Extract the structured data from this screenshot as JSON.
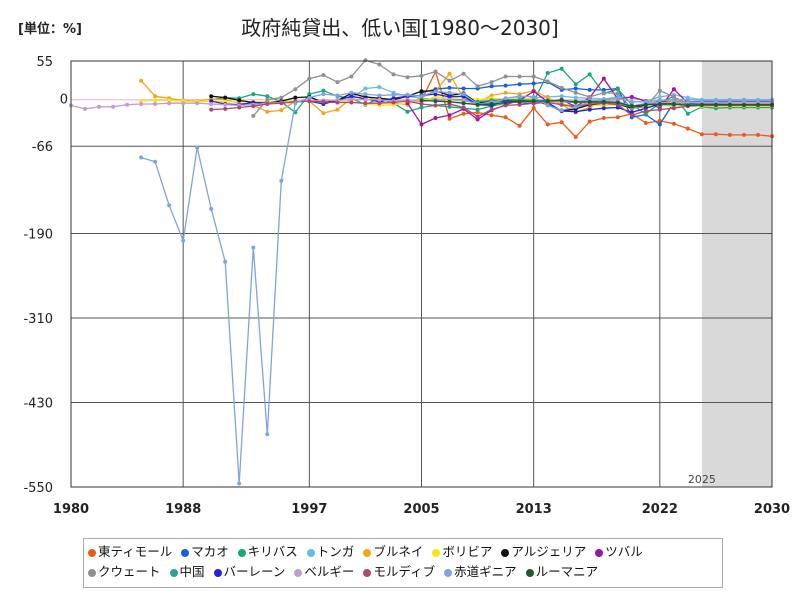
{
  "chart_data": {
    "type": "line",
    "title": "政府純貸出、低い国[1980～2030]",
    "unit_label": "[単位：%]",
    "xlim": [
      1980,
      2030
    ],
    "ylim": [
      -550,
      55
    ],
    "x_ticks": [
      "1980",
      "1988",
      "1997",
      "2005",
      "2013",
      "2022",
      "2030"
    ],
    "y_ticks": [
      "55",
      "0",
      "-66",
      "-190",
      "-310",
      "-430",
      "-550"
    ],
    "y_tick_values": [
      55,
      0,
      -66,
      -190,
      -310,
      -430,
      -550
    ],
    "x_tick_values": [
      1980,
      1988,
      1997,
      2005,
      2013,
      2022,
      2030
    ],
    "forecast_start": 2025,
    "forecast_label": "2025",
    "series": [
      {
        "name": "東ティモール",
        "color": "#ee5a1c",
        "x": [
          2005,
          2006,
          2007,
          2008,
          2009,
          2010,
          2011,
          2012,
          2013,
          2014,
          2015,
          2016,
          2017,
          2018,
          2019,
          2020,
          2021,
          2022,
          2023,
          2024,
          2025,
          2026,
          2027,
          2028,
          2029,
          2030
        ],
        "y": [
          -1,
          40,
          -27,
          -20,
          -18,
          -22,
          -25,
          -37,
          -12,
          -35,
          -32,
          -53,
          -31,
          -26,
          -25,
          -20,
          -33,
          -30,
          -34,
          -41,
          -49,
          -49,
          -50,
          -50,
          -50,
          -52
        ]
      },
      {
        "name": "マカオ",
        "color": "#1a5fd6",
        "x": [
          2005,
          2006,
          2007,
          2008,
          2009,
          2010,
          2011,
          2012,
          2013,
          2014,
          2015,
          2016,
          2017,
          2018,
          2019,
          2020,
          2021,
          2022,
          2023,
          2024,
          2025,
          2026,
          2027,
          2028,
          2029,
          2030
        ],
        "y": [
          10,
          15,
          17,
          16,
          16,
          19,
          20,
          22,
          23,
          25,
          14,
          16,
          14,
          14,
          16,
          -25,
          -21,
          -35,
          -4,
          -3,
          -3,
          -3,
          -3,
          -3,
          -3,
          -3
        ]
      },
      {
        "name": "キリバス",
        "color": "#1aa87a",
        "x": [
          1990,
          1991,
          1992,
          1993,
          1994,
          1995,
          1996,
          1997,
          1998,
          1999,
          2000,
          2001,
          2002,
          2003,
          2004,
          2005,
          2006,
          2007,
          2008,
          2009,
          2010,
          2011,
          2012,
          2013,
          2014,
          2015,
          2016,
          2017,
          2018,
          2019,
          2020,
          2021,
          2022,
          2023,
          2024,
          2025,
          2026,
          2027,
          2028,
          2029,
          2030
        ],
        "y": [
          0,
          3,
          2,
          8,
          5,
          -3,
          -18,
          8,
          13,
          5,
          2,
          -7,
          2,
          -5,
          -17,
          -11,
          -8,
          -10,
          -12,
          -14,
          -9,
          -5,
          4,
          -3,
          38,
          44,
          22,
          36,
          9,
          15,
          -7,
          -20,
          -5,
          5,
          -20,
          -10,
          -12,
          -11,
          -11,
          -11,
          -11
        ]
      },
      {
        "name": "トンガ",
        "color": "#66bce8",
        "x": [
          2000,
          2001,
          2002,
          2003,
          2004,
          2005,
          2006,
          2007,
          2008,
          2009,
          2010,
          2011,
          2012,
          2013,
          2014,
          2015,
          2016,
          2017,
          2018,
          2019,
          2020,
          2021,
          2022,
          2023,
          2024,
          2025,
          2026,
          2027,
          2028,
          2029,
          2030
        ],
        "y": [
          3,
          16,
          18,
          10,
          5,
          2,
          1,
          0,
          -2,
          -4,
          -3,
          -2,
          -1,
          3,
          4,
          5,
          3,
          2,
          1,
          4,
          3,
          -2,
          4,
          7,
          3,
          0,
          0,
          0,
          0,
          0,
          0
        ]
      },
      {
        "name": "ブルネイ",
        "color": "#f0a81a",
        "x": [
          1985,
          1986,
          1987,
          1988,
          1989,
          1990,
          1991,
          1992,
          1993,
          1994,
          1995,
          1996,
          1997,
          1998,
          1999,
          2000,
          2001,
          2002,
          2003,
          2004,
          2005,
          2006,
          2007,
          2008,
          2009,
          2010,
          2011,
          2012,
          2013,
          2014,
          2015,
          2016,
          2017,
          2018,
          2019,
          2020,
          2021,
          2022,
          2023,
          2024,
          2025,
          2026,
          2027,
          2028,
          2029,
          2030
        ],
        "y": [
          27,
          5,
          2,
          -1,
          -2,
          1,
          0,
          -5,
          -8,
          -17,
          -15,
          -2,
          -2,
          -19,
          -14,
          2,
          5,
          -3,
          -5,
          -7,
          3,
          12,
          37,
          2,
          -4,
          6,
          10,
          8,
          13,
          3,
          -7,
          -18,
          -11,
          -1,
          -2,
          -13,
          -6,
          -2,
          -1,
          -4,
          -4,
          -4,
          -4,
          -4,
          -4,
          -4
        ]
      },
      {
        "name": "ボリビア",
        "color": "#f7e516",
        "x": [
          1985,
          1986,
          1987,
          1988,
          1989,
          1990,
          1991,
          1992,
          1993,
          1994,
          1995,
          1996,
          1997,
          1998,
          1999,
          2000,
          2001,
          2002,
          2003,
          2004,
          2005,
          2006,
          2007,
          2008,
          2009,
          2010,
          2011,
          2012,
          2013,
          2014,
          2015,
          2016,
          2017,
          2018,
          2019,
          2020,
          2021,
          2022,
          2023,
          2024,
          2025,
          2026,
          2027,
          2028,
          2029,
          2030
        ],
        "y": [
          -2,
          -1,
          -1,
          -2,
          -3,
          -2,
          -3,
          -3,
          -3,
          -3,
          -2,
          -2,
          -2,
          -4,
          -3,
          -3,
          -6,
          -8,
          -7,
          -5,
          -2,
          4,
          2,
          3,
          0,
          2,
          1,
          2,
          1,
          -3,
          -7,
          -7,
          -8,
          -8,
          -7,
          -12,
          -9,
          -7,
          -10,
          -9,
          -9,
          -9,
          -9,
          -9,
          -9,
          -9
        ]
      },
      {
        "name": "アルジェリア",
        "color": "#111111",
        "x": [
          1990,
          1991,
          1992,
          1993,
          1994,
          1995,
          1996,
          1997,
          1998,
          1999,
          2000,
          2001,
          2002,
          2003,
          2004,
          2005,
          2006,
          2007,
          2008,
          2009,
          2010,
          2011,
          2012,
          2013,
          2014,
          2015,
          2016,
          2017,
          2018,
          2019,
          2020,
          2021,
          2022,
          2023,
          2024,
          2025,
          2026,
          2027,
          2028,
          2029,
          2030
        ],
        "y": [
          5,
          3,
          -1,
          -4,
          -5,
          -2,
          3,
          4,
          -4,
          -1,
          9,
          4,
          2,
          0,
          5,
          12,
          13,
          6,
          9,
          -5,
          -1,
          0,
          -1,
          -1,
          -7,
          -16,
          -13,
          -7,
          -5,
          -6,
          -12,
          -7,
          -3,
          -4,
          -4,
          -5,
          -5,
          -5,
          -5,
          -5,
          -5
        ]
      },
      {
        "name": "ツバル",
        "color": "#a0149e",
        "x": [
          2004,
          2005,
          2006,
          2007,
          2008,
          2009,
          2010,
          2011,
          2012,
          2013,
          2014,
          2015,
          2016,
          2017,
          2018,
          2019,
          2020,
          2021,
          2022,
          2023,
          2024,
          2025,
          2026,
          2027,
          2028,
          2029,
          2030
        ],
        "y": [
          -5,
          -35,
          -26,
          -22,
          -13,
          -28,
          -15,
          -7,
          -1,
          12,
          -3,
          0,
          -10,
          3,
          30,
          1,
          4,
          -2,
          -12,
          15,
          -5,
          -5,
          -5,
          -5,
          -5,
          -5,
          -5
        ]
      },
      {
        "name": "クウェート",
        "color": "#8c9196",
        "x": [
          1993,
          1994,
          1995,
          1996,
          1997,
          1998,
          1999,
          2000,
          2001,
          2002,
          2003,
          2004,
          2005,
          2006,
          2007,
          2008,
          2009,
          2010,
          2011,
          2012,
          2013,
          2014,
          2015,
          2016,
          2017,
          2018,
          2019,
          2020,
          2021,
          2022,
          2023,
          2024,
          2025,
          2026,
          2027,
          2028,
          2029,
          2030
        ],
        "y": [
          -23,
          0,
          3,
          15,
          30,
          35,
          25,
          33,
          56,
          50,
          36,
          32,
          34,
          40,
          27,
          37,
          19,
          25,
          33,
          33,
          33,
          26,
          17,
          10,
          4,
          10,
          9,
          -12,
          -10,
          13,
          4,
          -6,
          -5,
          -5,
          -5,
          -5,
          -5,
          -5
        ]
      },
      {
        "name": "中国",
        "color": "#2aa39a",
        "x": [
          2005,
          2006,
          2007,
          2008,
          2009,
          2010,
          2011,
          2012,
          2013,
          2014,
          2015,
          2016,
          2017,
          2018,
          2019,
          2020,
          2021,
          2022,
          2023,
          2024,
          2025,
          2026,
          2027,
          2028,
          2029,
          2030
        ],
        "y": [
          -1,
          -1,
          0,
          0,
          -3,
          -1,
          0,
          0,
          -1,
          -1,
          -3,
          -4,
          -4,
          -4,
          -6,
          -10,
          -6,
          -7,
          -7,
          -7,
          -7,
          -8,
          -8,
          -8,
          -8,
          -8
        ]
      },
      {
        "name": "バーレーン",
        "color": "#2222dd",
        "x": [
          1990,
          1991,
          1992,
          1993,
          1994,
          1995,
          1996,
          1997,
          1998,
          1999,
          2000,
          2001,
          2002,
          2003,
          2004,
          2005,
          2006,
          2007,
          2008,
          2009,
          2010,
          2011,
          2012,
          2013,
          2014,
          2015,
          2016,
          2017,
          2018,
          2019,
          2020,
          2021,
          2022,
          2023,
          2024,
          2025,
          2026,
          2027,
          2028,
          2029,
          2030
        ],
        "y": [
          -2,
          -6,
          -7,
          -4,
          -5,
          -4,
          -3,
          -2,
          -6,
          -1,
          5,
          1,
          -3,
          2,
          5,
          6,
          8,
          4,
          5,
          -7,
          -8,
          -1,
          -4,
          -5,
          -4,
          -16,
          -17,
          -14,
          -12,
          -11,
          -18,
          -12,
          -6,
          -4,
          -5,
          -4,
          -4,
          -5,
          -5,
          -5,
          -5
        ]
      },
      {
        "name": "ベルギー",
        "color": "#c39bd3",
        "x": [
          1980,
          1981,
          1982,
          1983,
          1984,
          1985,
          1986,
          1987,
          1988,
          1989,
          1990,
          1991,
          1992,
          1993,
          1994,
          1995,
          1996,
          1997,
          1998,
          1999,
          2000,
          2001,
          2002,
          2003,
          2004,
          2005,
          2006,
          2007,
          2008,
          2009,
          2010,
          2011,
          2012,
          2013,
          2014,
          2015,
          2016,
          2017,
          2018,
          2019,
          2020,
          2021,
          2022,
          2023,
          2024,
          2025,
          2026,
          2027,
          2028,
          2029,
          2030
        ],
        "y": [
          -8,
          -13,
          -10,
          -10,
          -7,
          -6,
          -6,
          -5,
          -5,
          -5,
          -6,
          -7,
          -8,
          -7,
          -5,
          -4,
          -3,
          -2,
          -1,
          -1,
          0,
          0,
          0,
          -2,
          0,
          -3,
          0,
          0,
          -1,
          -6,
          -4,
          -4,
          -4,
          -3,
          -3,
          -3,
          -2,
          -1,
          -1,
          -2,
          -9,
          -5,
          -4,
          -4,
          -4,
          -4,
          -4,
          -5,
          -5,
          -5,
          -5
        ]
      },
      {
        "name": "モルディブ",
        "color": "#b0486f",
        "x": [
          1990,
          1991,
          1992,
          1993,
          1994,
          1995,
          1996,
          1997,
          1998,
          1999,
          2000,
          2001,
          2002,
          2003,
          2004,
          2005,
          2006,
          2007,
          2008,
          2009,
          2010,
          2011,
          2012,
          2013,
          2014,
          2015,
          2016,
          2017,
          2018,
          2019,
          2020,
          2021,
          2022,
          2023,
          2024,
          2025,
          2026,
          2027,
          2028,
          2029,
          2030
        ],
        "y": [
          -14,
          -13,
          -11,
          -9,
          -6,
          -5,
          -3,
          -2,
          -3,
          -4,
          -4,
          -5,
          -5,
          -4,
          -2,
          -6,
          -8,
          -6,
          -11,
          -24,
          -14,
          -8,
          -7,
          -5,
          -4,
          -7,
          -10,
          -6,
          -5,
          -7,
          -22,
          -16,
          -14,
          -12,
          -9,
          -8,
          -8,
          -8,
          -8,
          -8,
          -8
        ]
      },
      {
        "name": "赤道ギニア",
        "color": "#7fa3e0",
        "x": [
          1985,
          1986,
          1987,
          1988,
          1989,
          1990,
          1991,
          1992,
          1993,
          1994,
          1995,
          1996,
          1997,
          1998,
          1999,
          2000,
          2001,
          2002,
          2003,
          2004,
          2005,
          2006,
          2007,
          2008,
          2009,
          2010,
          2011,
          2012,
          2013,
          2014,
          2015,
          2016,
          2017,
          2018,
          2019,
          2020,
          2021,
          2022,
          2023,
          2024,
          2025,
          2026,
          2027,
          2028,
          2029,
          2030
        ],
        "y": [
          -82,
          -88,
          -150,
          -200,
          -68,
          -155,
          -230,
          -545,
          -210,
          -475,
          -115,
          -5,
          3,
          8,
          6,
          10,
          8,
          6,
          7,
          7,
          5,
          12,
          10,
          8,
          -6,
          -5,
          2,
          5,
          4,
          -8,
          -15,
          -10,
          -3,
          0,
          2,
          -3,
          -3,
          -1,
          0,
          0,
          -1,
          -1,
          -1,
          -1,
          -1,
          -1
        ]
      },
      {
        "name": "ルーマニア",
        "color": "#1e5c2a",
        "x": [
          2005,
          2006,
          2007,
          2008,
          2009,
          2010,
          2011,
          2012,
          2013,
          2014,
          2015,
          2016,
          2017,
          2018,
          2019,
          2020,
          2021,
          2022,
          2023,
          2024,
          2025,
          2026,
          2027,
          2028,
          2029,
          2030
        ],
        "y": [
          -1,
          -2,
          -3,
          -5,
          -7,
          -6,
          -4,
          -3,
          -2,
          -2,
          -1,
          -3,
          -3,
          -3,
          -4,
          -9,
          -7,
          -6,
          -6,
          -8,
          -7,
          -7,
          -7,
          -7,
          -7,
          -7
        ]
      }
    ]
  }
}
